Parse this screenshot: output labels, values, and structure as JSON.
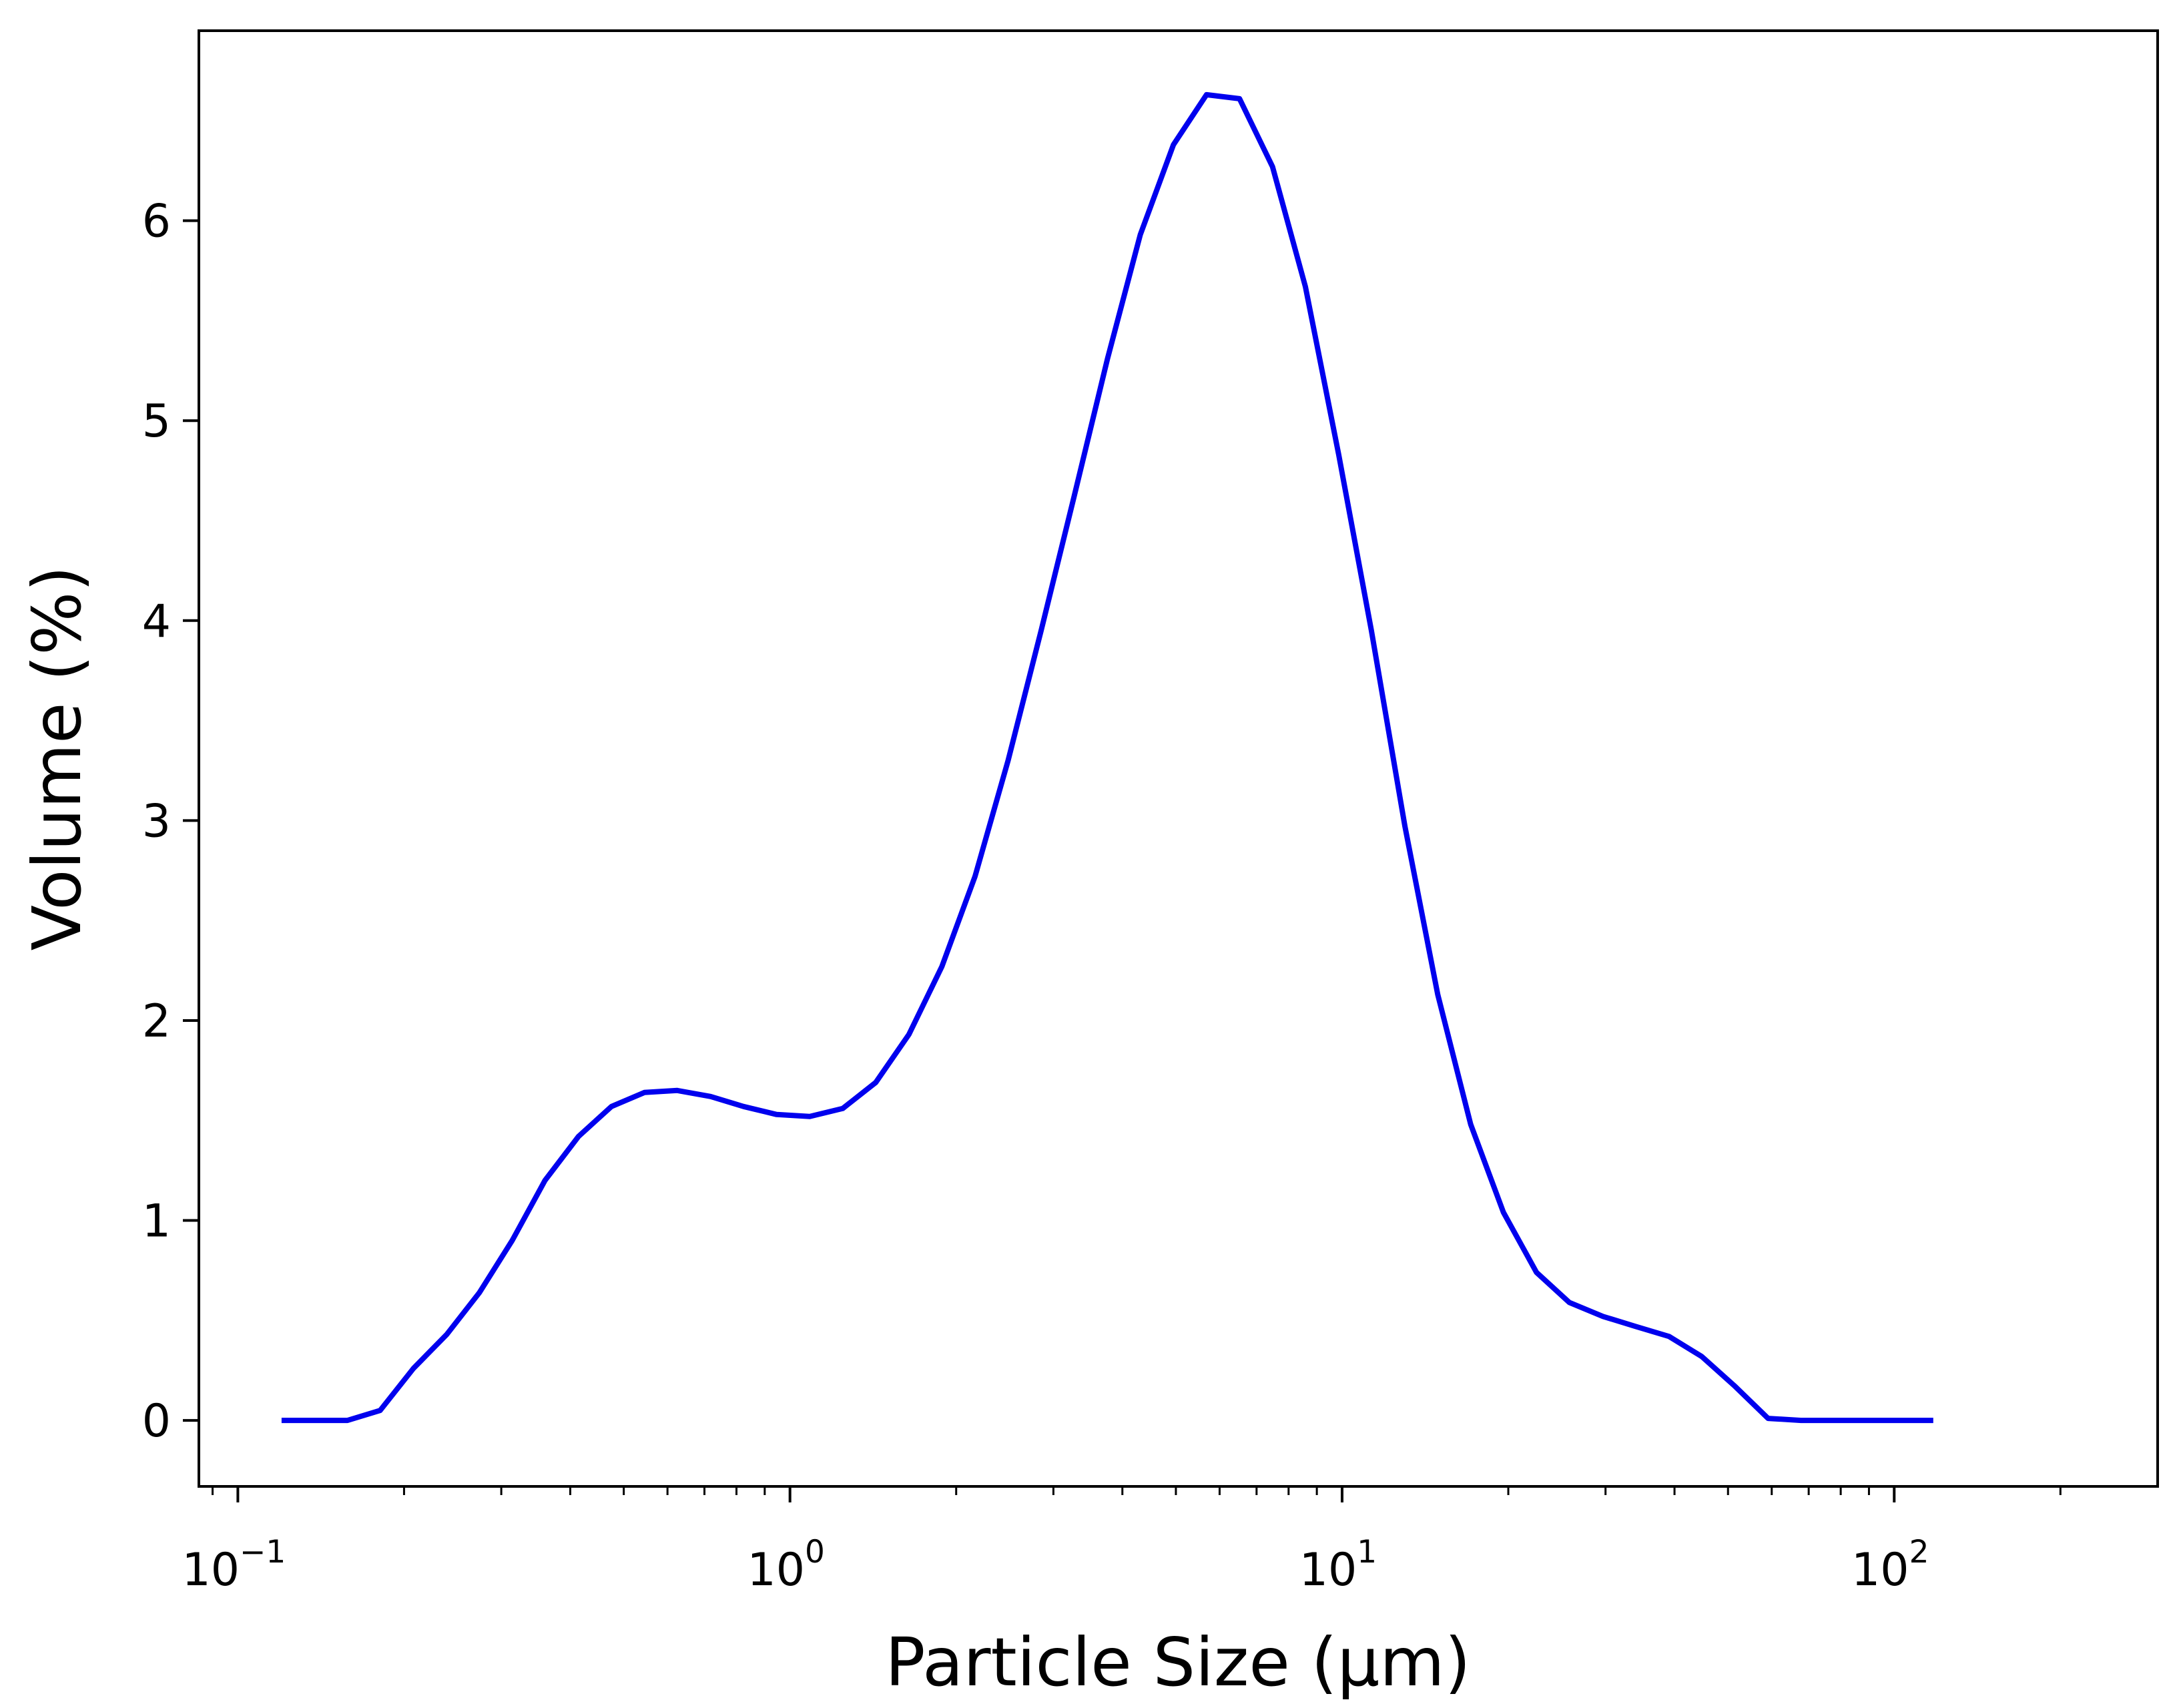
{
  "chart_data": {
    "type": "line",
    "xlabel": "Particle Size (μm)",
    "ylabel": "Volume (%)",
    "x_scale": "log",
    "xlim": [
      0.085,
      300
    ],
    "ylim": [
      -0.33,
      6.95
    ],
    "x_ticks": [
      {
        "value": 0.1,
        "base": "10",
        "exp": "−1"
      },
      {
        "value": 1,
        "base": "10",
        "exp": "0"
      },
      {
        "value": 10,
        "base": "10",
        "exp": "1"
      },
      {
        "value": 100,
        "base": "10",
        "exp": "2"
      }
    ],
    "y_ticks": [
      0,
      1,
      2,
      3,
      4,
      5,
      6
    ],
    "grid": false,
    "legend": "none",
    "series": [
      {
        "color": "#0000ee",
        "x": [
          0.12,
          0.138,
          0.158,
          0.181,
          0.208,
          0.239,
          0.274,
          0.314,
          0.36,
          0.414,
          0.475,
          0.545,
          0.625,
          0.718,
          0.824,
          0.946,
          1.086,
          1.246,
          1.43,
          1.642,
          1.884,
          2.163,
          2.483,
          2.85,
          3.27,
          3.76,
          4.31,
          4.95,
          5.68,
          6.52,
          7.48,
          8.58,
          9.86,
          11.3,
          13.0,
          14.9,
          17.1,
          19.6,
          22.5,
          25.8,
          29.7,
          34.0,
          39.1,
          44.8,
          51.5,
          59.1,
          67.8,
          77.8,
          89.3,
          102.5,
          117.7
        ],
        "y": [
          0.0,
          0.0,
          0.0,
          0.05,
          0.26,
          0.43,
          0.64,
          0.9,
          1.2,
          1.42,
          1.57,
          1.64,
          1.65,
          1.62,
          1.57,
          1.53,
          1.52,
          1.56,
          1.69,
          1.93,
          2.27,
          2.72,
          3.3,
          3.95,
          4.62,
          5.31,
          5.93,
          6.38,
          6.63,
          6.61,
          6.27,
          5.67,
          4.83,
          3.95,
          2.97,
          2.13,
          1.48,
          1.04,
          0.74,
          0.59,
          0.52,
          0.47,
          0.42,
          0.32,
          0.17,
          0.01,
          0.0,
          0.0,
          0.0,
          0.0,
          0.0
        ]
      }
    ]
  }
}
